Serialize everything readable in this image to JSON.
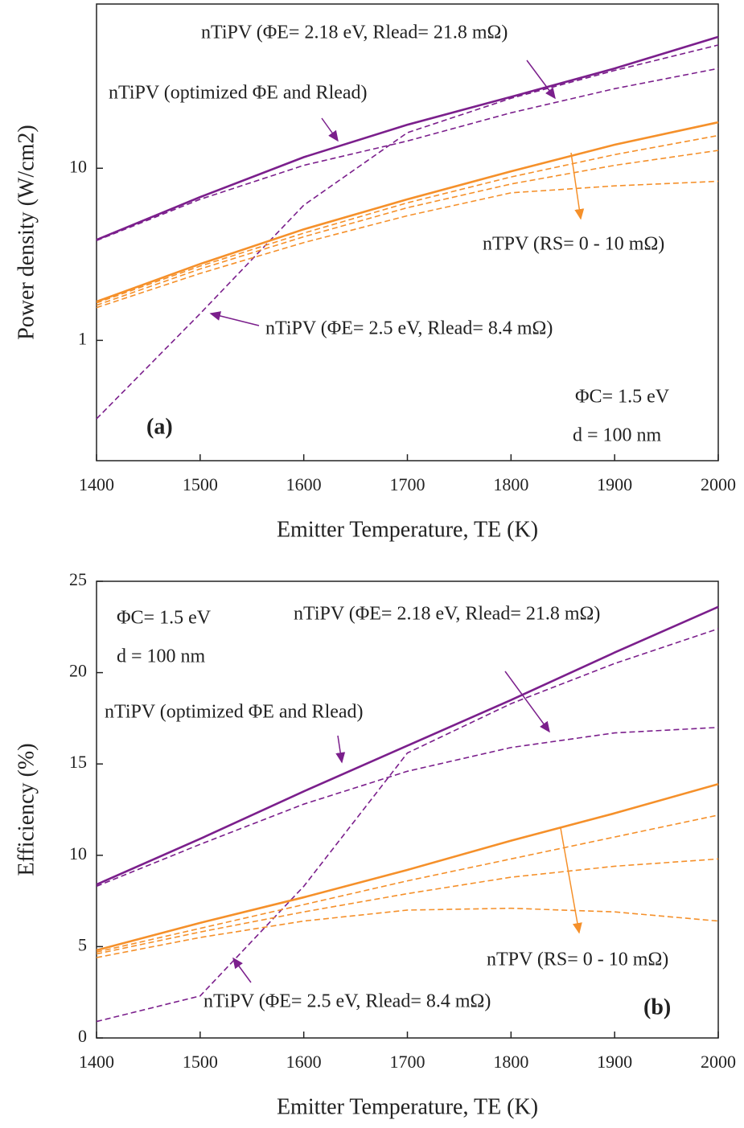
{
  "chart_data": [
    {
      "type": "line",
      "log_y": true,
      "xlabel": "Emitter Temperature, TE (K)",
      "ylabel": "Power density (W/cm2)",
      "x": [
        1400,
        1500,
        1600,
        1700,
        1800,
        1900,
        2000
      ],
      "xlim": [
        1400,
        2000
      ],
      "xticks": [
        1400,
        1500,
        1600,
        1700,
        1800,
        1900,
        2000
      ],
      "ylim": [
        0.2,
        90
      ],
      "yticks": [
        1,
        10
      ],
      "series": [
        {
          "name": "nTiPV (optimized ΦE and Rlead)",
          "color": "#7b1f8c",
          "linestyle": "solid",
          "values": [
            3.84,
            6.8,
            11.6,
            17.9,
            26,
            38,
            58
          ]
        },
        {
          "name": "nTiPV  (ΦE= 2.18 eV, Rlead= 21.8 mΩ)",
          "color": "#7b1f8c",
          "linestyle": "dashed",
          "values": [
            3.8,
            6.6,
            10.4,
            14.4,
            21,
            29,
            38
          ]
        },
        {
          "name": "nTiPV  (ΦE= 2.5 eV, Rlead= 8.4 mΩ)",
          "color": "#7b1f8c",
          "linestyle": "dashed",
          "values": [
            0.35,
            1.43,
            6.1,
            16.1,
            25.5,
            37,
            52
          ]
        },
        {
          "color": "#f5902a",
          "linestyle": "solid",
          "values": [
            1.68,
            2.78,
            4.42,
            6.6,
            9.6,
            13.7,
            18.5
          ]
        },
        {
          "color": "#f5902a",
          "linestyle": "dashed",
          "values": [
            1.65,
            2.7,
            4.2,
            6.3,
            8.9,
            12,
            15.5
          ]
        },
        {
          "color": "#f5902a",
          "linestyle": "dashed",
          "values": [
            1.6,
            2.6,
            4.0,
            5.9,
            8.1,
            10.4,
            12.7
          ]
        },
        {
          "color": "#f5902a",
          "linestyle": "dashed",
          "values": [
            1.55,
            2.45,
            3.7,
            5.3,
            7.2,
            7.9,
            8.4
          ]
        }
      ],
      "annotations": [
        "nTPV (RS= 0 - 10 mΩ)",
        "ΦC= 1.5 eV",
        "d = 100 nm",
        "(a)"
      ]
    },
    {
      "type": "line",
      "xlabel": "Emitter Temperature, TE (K)",
      "ylabel": "Efficiency (%)",
      "x": [
        1400,
        1500,
        1600,
        1700,
        1800,
        1900,
        2000
      ],
      "xlim": [
        1400,
        2000
      ],
      "xticks": [
        1400,
        1500,
        1600,
        1700,
        1800,
        1900,
        2000
      ],
      "ylim": [
        0,
        25
      ],
      "yticks": [
        0,
        5,
        10,
        15,
        20,
        25
      ],
      "series": [
        {
          "name": "nTiPV (optimized ΦE and Rlead)",
          "color": "#7b1f8c",
          "linestyle": "solid",
          "values": [
            8.4,
            10.9,
            13.5,
            16.0,
            18.5,
            21.1,
            23.6
          ]
        },
        {
          "name": "nTiPV  (ΦE= 2.18 eV, Rlead= 21.8 mΩ)",
          "color": "#7b1f8c",
          "linestyle": "dashed",
          "values": [
            8.3,
            10.6,
            12.8,
            14.6,
            15.9,
            16.7,
            17.0
          ]
        },
        {
          "name": "nTiPV  (ΦE= 2.5 eV, Rlead= 8.4 mΩ)",
          "color": "#7b1f8c",
          "linestyle": "dashed",
          "values": [
            0.9,
            2.3,
            8.3,
            15.6,
            18.3,
            20.5,
            22.4
          ]
        },
        {
          "color": "#f5902a",
          "linestyle": "solid",
          "values": [
            4.8,
            6.3,
            7.7,
            9.2,
            10.8,
            12.3,
            13.9
          ]
        },
        {
          "color": "#f5902a",
          "linestyle": "dashed",
          "values": [
            4.7,
            6.0,
            7.3,
            8.6,
            9.8,
            11.0,
            12.2
          ]
        },
        {
          "color": "#f5902a",
          "linestyle": "dashed",
          "values": [
            4.6,
            5.8,
            6.9,
            7.9,
            8.8,
            9.4,
            9.8
          ]
        },
        {
          "color": "#f5902a",
          "linestyle": "dashed",
          "values": [
            4.4,
            5.5,
            6.4,
            7.0,
            7.1,
            6.9,
            6.4
          ]
        }
      ],
      "annotations": [
        "nTPV (RS= 0 - 10 mΩ)",
        "ΦC= 1.5 eV",
        "d = 100 nm",
        "(b)"
      ]
    }
  ]
}
